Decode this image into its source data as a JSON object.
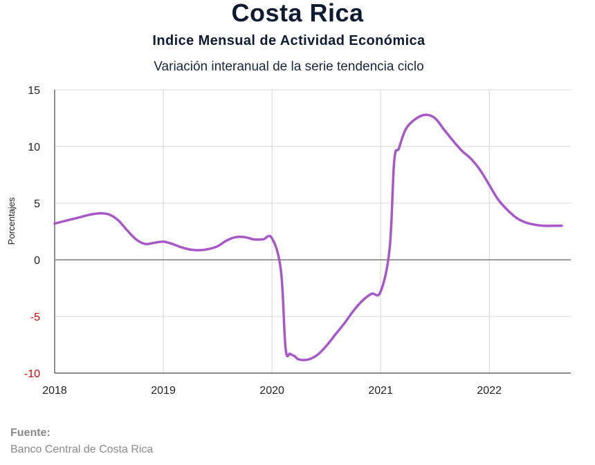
{
  "header": {
    "title": "Costa Rica",
    "subtitle": "Indice Mensual de  Actividad Económica",
    "subtitle2": "Variación interanual de la serie tendencia ciclo"
  },
  "source": {
    "label": "Fuente:",
    "value": "Banco Central de Costa Rica"
  },
  "chart_data": {
    "type": "line",
    "ylabel": "Porcentajes",
    "xlabel": "",
    "ylim": [
      -10,
      15
    ],
    "yticks": [
      15,
      10,
      5,
      0,
      -5,
      -10
    ],
    "negative_tick_color": "#cc0000",
    "xticks": [
      "2018",
      "2019",
      "2020",
      "2021",
      "2022"
    ],
    "grid": true,
    "line_color": "#a857c8",
    "zero_line_color": "#7a7a7a",
    "series": [
      {
        "x": [
          2018.0,
          2018.083,
          2018.167,
          2018.25,
          2018.333,
          2018.417,
          2018.5,
          2018.583,
          2018.667,
          2018.75,
          2018.833,
          2018.917,
          2019.0,
          2019.083,
          2019.167,
          2019.25,
          2019.333,
          2019.417,
          2019.5,
          2019.583,
          2019.667,
          2019.75,
          2019.833,
          2019.917,
          2020.0,
          2020.083,
          2020.125,
          2020.167,
          2020.208,
          2020.25,
          2020.333,
          2020.417,
          2020.5,
          2020.583,
          2020.667,
          2020.75,
          2020.833,
          2020.917,
          2021.0,
          2021.083,
          2021.125,
          2021.167,
          2021.208,
          2021.25,
          2021.333,
          2021.417,
          2021.5,
          2021.583,
          2021.667,
          2021.75,
          2021.833,
          2021.917,
          2022.0,
          2022.083,
          2022.167,
          2022.25,
          2022.333,
          2022.417,
          2022.5,
          2022.583,
          2022.667
        ],
        "values": [
          3.2,
          3.4,
          3.6,
          3.8,
          4.0,
          4.1,
          4.0,
          3.5,
          2.6,
          1.8,
          1.4,
          1.5,
          1.6,
          1.4,
          1.1,
          0.9,
          0.85,
          0.95,
          1.2,
          1.7,
          2.0,
          2.0,
          1.8,
          1.8,
          1.9,
          -1.0,
          -7.8,
          -8.3,
          -8.5,
          -8.8,
          -8.8,
          -8.4,
          -7.6,
          -6.6,
          -5.6,
          -4.5,
          -3.6,
          -3.0,
          -2.8,
          1.0,
          8.7,
          9.8,
          11.0,
          11.8,
          12.5,
          12.8,
          12.5,
          11.5,
          10.5,
          9.6,
          8.9,
          7.9,
          6.6,
          5.3,
          4.4,
          3.7,
          3.3,
          3.1,
          3.0,
          3.0,
          3.0
        ]
      }
    ]
  }
}
